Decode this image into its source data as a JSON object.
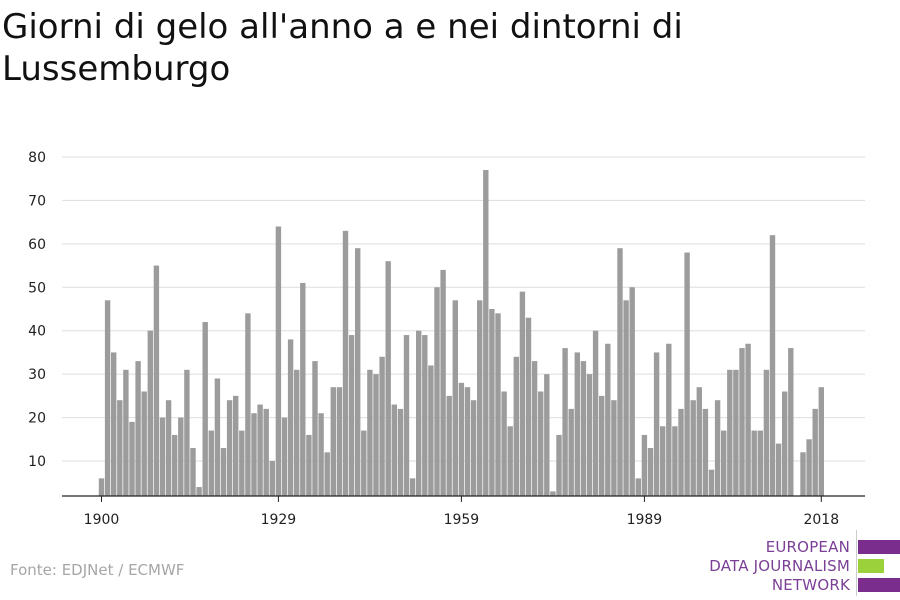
{
  "title": "Giorni di gelo all'anno a e nei dintorni di Lussemburgo",
  "source": "Fonte: EDJNet / ECMWF",
  "logo": {
    "lines": [
      "EUROPEAN",
      "DATA JOURNALISM",
      "NETWORK"
    ],
    "colors": [
      "#7b2d8e",
      "#9bd13a",
      "#7b2d8e"
    ]
  },
  "chart_data": {
    "type": "bar",
    "title": "Giorni di gelo all'anno a e nei dintorni di Lussemburgo",
    "xlabel": "",
    "ylabel": "",
    "ylim": [
      2,
      80
    ],
    "yticks": [
      10,
      20,
      30,
      40,
      50,
      60,
      70,
      80
    ],
    "xticks": [
      "1900",
      "1929",
      "1959",
      "1989",
      "2018"
    ],
    "grid": true,
    "bar_color": "#9c9c9c",
    "x_start": 1900,
    "x_end": 2018,
    "values": [
      6,
      47,
      35,
      24,
      31,
      19,
      33,
      26,
      40,
      55,
      20,
      24,
      16,
      20,
      31,
      13,
      4,
      42,
      17,
      29,
      13,
      24,
      25,
      17,
      44,
      21,
      23,
      22,
      10,
      64,
      20,
      38,
      31,
      51,
      16,
      33,
      21,
      12,
      27,
      27,
      63,
      39,
      59,
      17,
      31,
      30,
      34,
      56,
      23,
      22,
      39,
      6,
      40,
      39,
      32,
      50,
      54,
      25,
      47,
      28,
      27,
      24,
      47,
      77,
      45,
      44,
      26,
      18,
      34,
      49,
      43,
      33,
      26,
      30,
      3,
      16,
      36,
      22,
      35,
      33,
      30,
      40,
      25,
      37,
      24,
      59,
      47,
      50,
      6,
      16,
      13,
      35,
      18,
      37,
      18,
      22,
      58,
      24,
      27,
      22,
      8,
      24,
      17,
      31,
      31,
      36,
      37,
      17,
      17,
      31,
      62,
      14,
      26,
      36,
      1,
      12,
      15,
      22,
      27
    ]
  }
}
